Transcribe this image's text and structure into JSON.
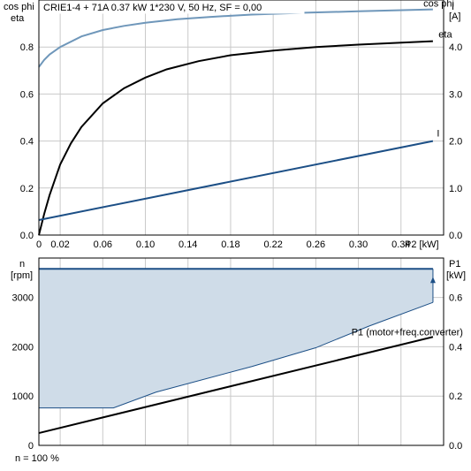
{
  "chart_data": [
    {
      "type": "line",
      "title": "CRIE1-4 + 71A   0.37 kW   1*230 V, 50 Hz, SF = 0,00",
      "left_axis_label": [
        "cos phi",
        "eta"
      ],
      "right_axis_label": [
        "I",
        "[A]"
      ],
      "xlabel": "P2 [kW]",
      "xlim": [
        0,
        0.38
      ],
      "ylim_left": [
        0,
        1.0
      ],
      "ylim_right": [
        0,
        5.0
      ],
      "x_ticks": [
        "0",
        "0.02",
        "0.06",
        "0.10",
        "0.14",
        "0.18",
        "0.22",
        "0.26",
        "0.30",
        "0.34"
      ],
      "x_tick_values": [
        0,
        0.02,
        0.06,
        0.1,
        0.14,
        0.18,
        0.22,
        0.26,
        0.3,
        0.34
      ],
      "y_ticks_left": [
        "0.0",
        "0.2",
        "0.4",
        "0.6",
        "0.8"
      ],
      "y_ticks_right": [
        "0.0",
        "1.0",
        "2.0",
        "3.0",
        "4.0"
      ],
      "grid": true,
      "series": [
        {
          "name": "cos phi",
          "axis": "left",
          "color": "#6f97ba",
          "x": [
            0,
            0.005,
            0.01,
            0.02,
            0.04,
            0.06,
            0.08,
            0.1,
            0.13,
            0.16,
            0.2,
            0.25,
            0.3,
            0.37
          ],
          "y": [
            0.715,
            0.745,
            0.768,
            0.8,
            0.845,
            0.872,
            0.89,
            0.903,
            0.918,
            0.928,
            0.938,
            0.946,
            0.952,
            0.96
          ]
        },
        {
          "name": "eta",
          "axis": "left",
          "color": "#000000",
          "x": [
            0,
            0.005,
            0.01,
            0.02,
            0.03,
            0.04,
            0.06,
            0.08,
            0.1,
            0.12,
            0.15,
            0.18,
            0.22,
            0.26,
            0.3,
            0.37
          ],
          "y": [
            0.0,
            0.09,
            0.17,
            0.3,
            0.39,
            0.46,
            0.56,
            0.625,
            0.67,
            0.705,
            0.74,
            0.765,
            0.785,
            0.8,
            0.81,
            0.825
          ]
        },
        {
          "name": "I",
          "axis": "right",
          "color": "#1c4f86",
          "x": [
            0,
            0.37
          ],
          "y": [
            0.32,
            2.0
          ]
        }
      ]
    },
    {
      "type": "area",
      "left_axis_label": [
        "n",
        "[rpm]"
      ],
      "right_axis_label": [
        "P1",
        "[kW]"
      ],
      "ylim_left": [
        0,
        3800
      ],
      "ylim_right": [
        0,
        0.76
      ],
      "y_ticks_left": [
        "0",
        "1000",
        "2000",
        "3000"
      ],
      "y_ticks_right": [
        "0.0",
        "0.2",
        "0.4",
        "0.6"
      ],
      "grid": true,
      "x": [
        0,
        0.37
      ],
      "series": [
        {
          "name": "n",
          "axis": "left",
          "color": "#1c4f86",
          "fill": "#cfdce8",
          "x": [
            0,
            0.37
          ],
          "y": [
            3580,
            3580
          ]
        },
        {
          "axis": "left",
          "color": "#1c4f86",
          "x": [
            0,
            0.07,
            0.11,
            0.2,
            0.26,
            0.31,
            0.37
          ],
          "y": [
            760,
            760,
            1080,
            1600,
            1980,
            2420,
            2900
          ]
        },
        {
          "name": "P1 (motor+freq.converter)",
          "axis": "right",
          "color": "#000000",
          "x": [
            0,
            0.37
          ],
          "y": [
            0.05,
            0.44
          ]
        }
      ],
      "annotation": "n = 100 %"
    }
  ]
}
